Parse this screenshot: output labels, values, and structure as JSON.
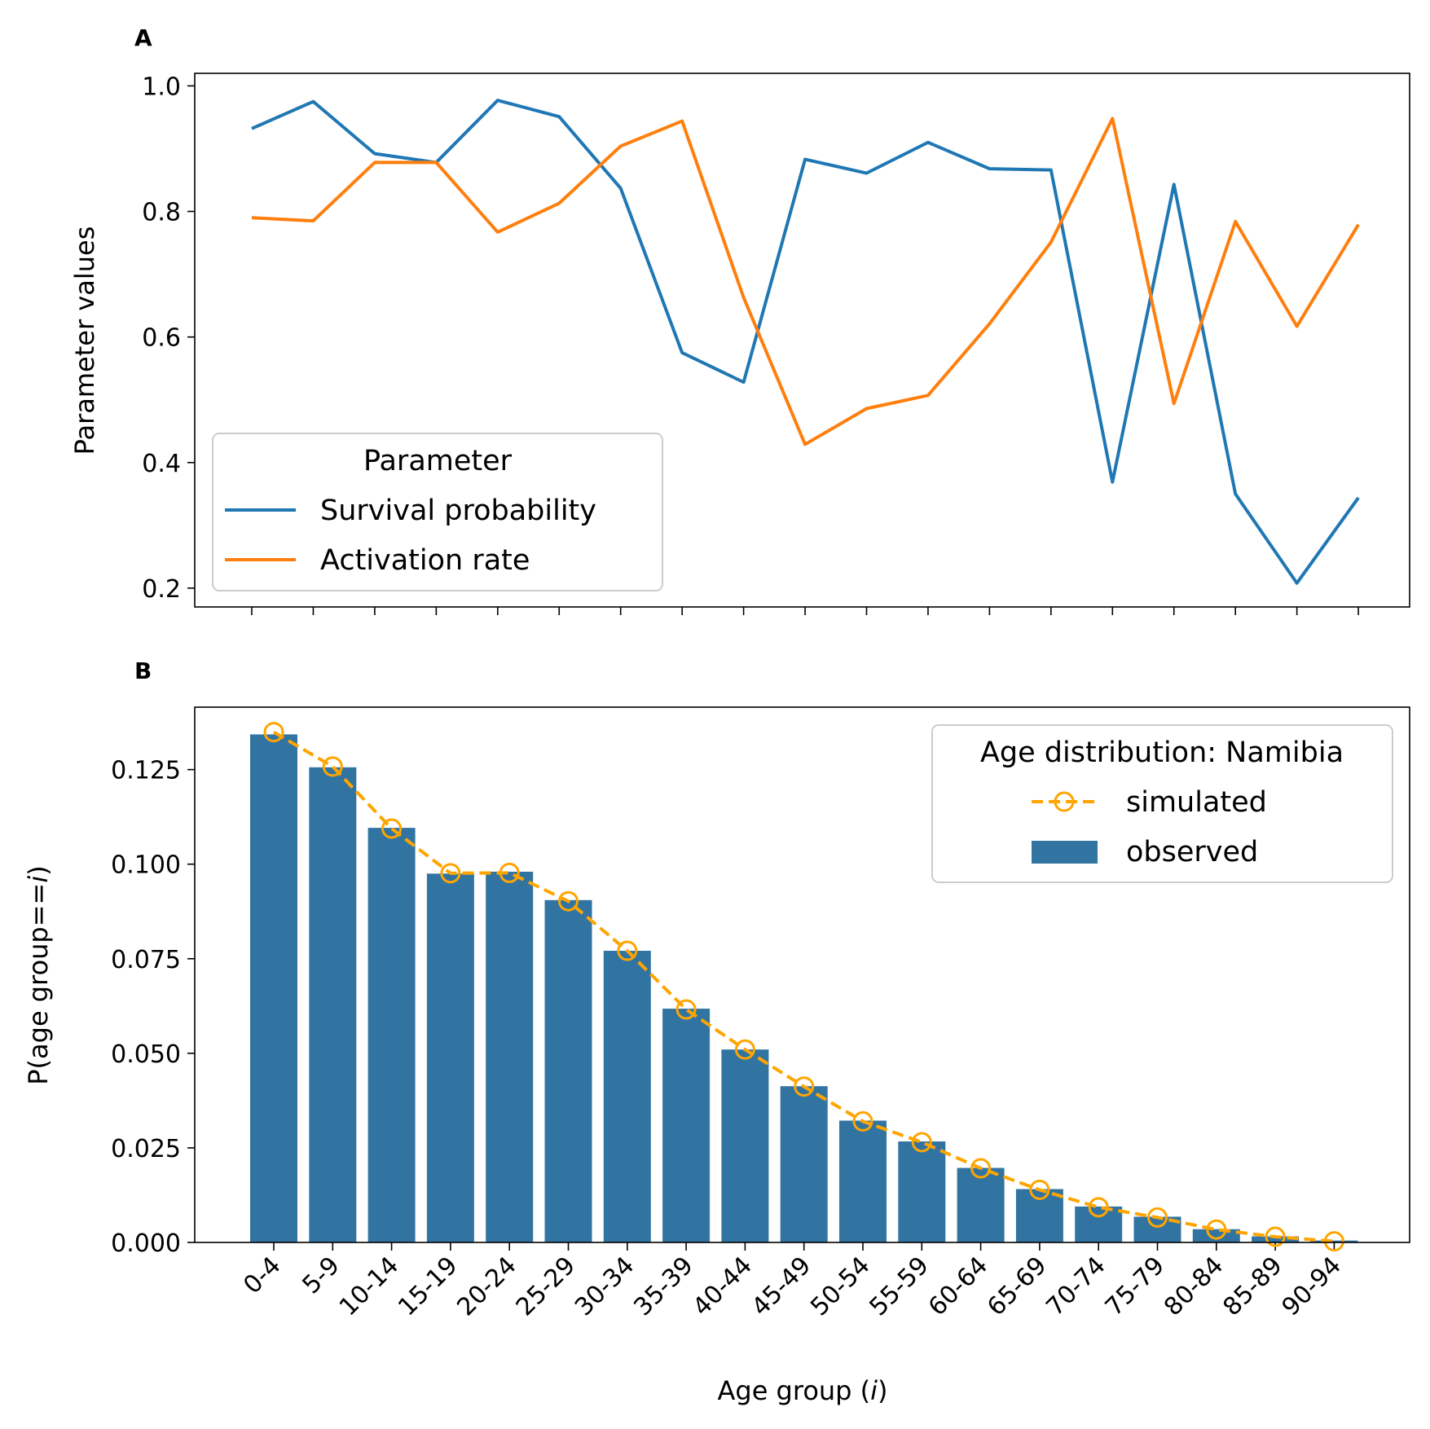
{
  "chart_data": [
    {
      "panel": "A",
      "type": "line",
      "title": "",
      "xlabel": "",
      "ylabel": "Parameter values",
      "ylim": [
        0.17,
        1.02
      ],
      "yticks": [
        "0.2",
        "0.4",
        "0.6",
        "0.8",
        "1.0"
      ],
      "yticks_values": [
        0.2,
        0.4,
        0.6,
        0.8,
        1.0
      ],
      "legend": {
        "title": "Parameter",
        "placement": "lower-left"
      },
      "x_count": 19,
      "series": [
        {
          "name": "Survival probability",
          "color": "#1f77b4",
          "values": [
            0.932,
            0.975,
            0.892,
            0.878,
            0.977,
            0.951,
            0.837,
            0.575,
            0.528,
            0.883,
            0.861,
            0.91,
            0.868,
            0.866,
            0.369,
            0.843,
            0.35,
            0.208,
            0.344
          ]
        },
        {
          "name": "Activation rate",
          "color": "#ff7f0e",
          "values": [
            0.79,
            0.785,
            0.878,
            0.878,
            0.767,
            0.813,
            0.904,
            0.944,
            0.663,
            0.429,
            0.486,
            0.507,
            0.621,
            0.751,
            0.948,
            0.494,
            0.784,
            0.617,
            0.779
          ]
        }
      ]
    },
    {
      "panel": "B",
      "type": "bar",
      "title": "",
      "xlabel_prefix": "Age group (",
      "xlabel_var": "i",
      "xlabel_suffix": ")",
      "ylabel_prefix": "P(age group==",
      "ylabel_var": "i",
      "ylabel_suffix": ")",
      "ylim": [
        0,
        0.1415
      ],
      "yticks": [
        "0.000",
        "0.025",
        "0.050",
        "0.075",
        "0.100",
        "0.125"
      ],
      "yticks_values": [
        0,
        0.025,
        0.05,
        0.075,
        0.1,
        0.125
      ],
      "categories": [
        "0-4",
        "5-9",
        "10-14",
        "15-19",
        "20-24",
        "25-29",
        "30-34",
        "35-39",
        "40-44",
        "45-49",
        "50-54",
        "55-59",
        "60-64",
        "65-69",
        "70-74",
        "75-79",
        "80-84",
        "85-89",
        "90-94"
      ],
      "legend": {
        "title": "Age distribution: Namibia",
        "placement": "top-right"
      },
      "series": [
        {
          "name": "observed",
          "kind": "bar",
          "color": "#3274a1",
          "values": [
            0.1343,
            0.1256,
            0.1096,
            0.0975,
            0.098,
            0.0905,
            0.0771,
            0.0618,
            0.051,
            0.0413,
            0.0322,
            0.0267,
            0.0197,
            0.0141,
            0.0095,
            0.0068,
            0.0035,
            0.0016,
            0.0005
          ]
        },
        {
          "name": "simulated",
          "kind": "line",
          "style": "dashed, hollow circle markers",
          "color": "#ffa500",
          "values": [
            0.1349,
            0.1258,
            0.1094,
            0.0976,
            0.0977,
            0.0902,
            0.0771,
            0.0616,
            0.051,
            0.0412,
            0.032,
            0.0265,
            0.0196,
            0.0139,
            0.0093,
            0.0066,
            0.0034,
            0.0015,
            0.0003
          ]
        }
      ]
    }
  ]
}
